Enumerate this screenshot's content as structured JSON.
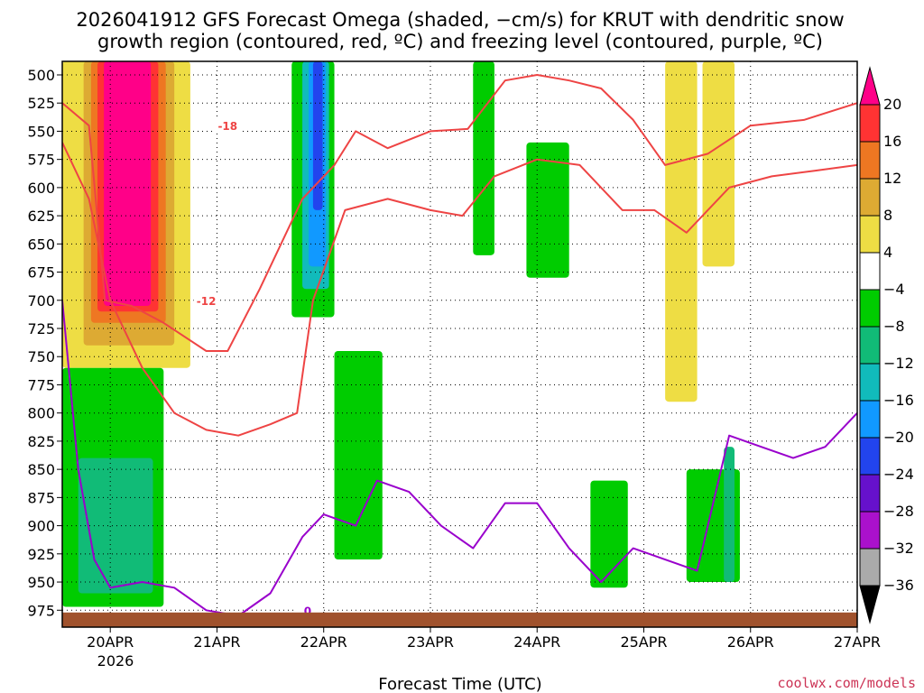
{
  "chart_data": {
    "type": "heatmap",
    "title_line1": "2026041912 GFS Forecast Omega (shaded, −cm/s) for KRUT with dendritic snow",
    "title_line2": "growth region (contoured, red, ºC) and freezing level (contoured, purple, ºC)",
    "xlabel": "Forecast Time (UTC)",
    "credit": "coolwx.com/models",
    "x_ticks": [
      "20APR",
      "21APR",
      "22APR",
      "23APR",
      "24APR",
      "25APR",
      "26APR",
      "27APR"
    ],
    "x_sub_label": "2026",
    "y_ticks": [
      "500",
      "525",
      "550",
      "575",
      "600",
      "625",
      "650",
      "675",
      "700",
      "725",
      "750",
      "775",
      "800",
      "825",
      "850",
      "875",
      "900",
      "925",
      "950",
      "975"
    ],
    "xlim": [
      -0.45,
      7.0
    ],
    "ylim": [
      488,
      990
    ],
    "colorbar": {
      "levels": [
        "20",
        "16",
        "12",
        "8",
        "4",
        "−4",
        "−8",
        "−12",
        "−16",
        "−20",
        "−24",
        "−28",
        "−32",
        "−36"
      ],
      "colors": [
        "#ff0088",
        "#ff3333",
        "#ee7722",
        "#ddaa33",
        "#eedd44",
        "#ffffff",
        "#00cc00",
        "#11bb77",
        "#11bbbb",
        "#1199ff",
        "#2244ee",
        "#6611cc",
        "#aa11cc",
        "#aaaaaa",
        "#000000"
      ]
    },
    "omega_regions": [
      {
        "color": "#eedd44",
        "x0": -0.45,
        "x1": 0.75,
        "p0": 488,
        "p1": 760
      },
      {
        "color": "#ddaa33",
        "x0": -0.25,
        "x1": 0.6,
        "p0": 488,
        "p1": 740
      },
      {
        "color": "#ee7722",
        "x0": -0.18,
        "x1": 0.52,
        "p0": 488,
        "p1": 720
      },
      {
        "color": "#ff3333",
        "x0": -0.12,
        "x1": 0.45,
        "p0": 488,
        "p1": 710
      },
      {
        "color": "#ff0088",
        "x0": -0.06,
        "x1": 0.38,
        "p0": 488,
        "p1": 705
      },
      {
        "color": "#00cc00",
        "x0": -0.45,
        "x1": 0.5,
        "p0": 760,
        "p1": 972
      },
      {
        "color": "#11bb77",
        "x0": -0.3,
        "x1": 0.4,
        "p0": 840,
        "p1": 960
      },
      {
        "color": "#00cc00",
        "x0": 1.7,
        "x1": 2.1,
        "p0": 488,
        "p1": 715
      },
      {
        "color": "#11bbbb",
        "x0": 1.8,
        "x1": 2.05,
        "p0": 488,
        "p1": 690
      },
      {
        "color": "#1199ff",
        "x0": 1.86,
        "x1": 2.02,
        "p0": 488,
        "p1": 670
      },
      {
        "color": "#2244ee",
        "x0": 1.9,
        "x1": 1.99,
        "p0": 488,
        "p1": 620
      },
      {
        "color": "#00cc00",
        "x0": 2.1,
        "x1": 2.55,
        "p0": 745,
        "p1": 930
      },
      {
        "color": "#00cc00",
        "x0": 3.4,
        "x1": 3.6,
        "p0": 488,
        "p1": 660
      },
      {
        "color": "#00cc00",
        "x0": 3.9,
        "x1": 4.3,
        "p0": 560,
        "p1": 680
      },
      {
        "color": "#eedd44",
        "x0": 5.2,
        "x1": 5.5,
        "p0": 488,
        "p1": 790
      },
      {
        "color": "#eedd44",
        "x0": 5.55,
        "x1": 5.85,
        "p0": 488,
        "p1": 670
      },
      {
        "color": "#00cc00",
        "x0": 5.4,
        "x1": 5.9,
        "p0": 850,
        "p1": 950
      },
      {
        "color": "#11bb77",
        "x0": 5.75,
        "x1": 5.85,
        "p0": 830,
        "p1": 950
      },
      {
        "color": "#00cc00",
        "x0": 4.5,
        "x1": 4.85,
        "p0": 860,
        "p1": 955
      }
    ],
    "series": [
      {
        "name": "-18",
        "color": "#ee4444",
        "label_at": 1,
        "label_x": 1.1,
        "x": [
          -0.45,
          -0.2,
          -0.05,
          0.2,
          0.5,
          0.9,
          1.1,
          1.4,
          1.8,
          2.1,
          2.3,
          2.6,
          3.0,
          3.35,
          3.7,
          4.0,
          4.3,
          4.6,
          4.9,
          5.2,
          5.6,
          6.0,
          6.5,
          7.0
        ],
        "y": [
          525,
          545,
          700,
          705,
          720,
          745,
          745,
          690,
          610,
          580,
          550,
          565,
          550,
          548,
          505,
          500,
          505,
          512,
          540,
          580,
          570,
          545,
          540,
          525
        ]
      },
      {
        "name": "-12",
        "color": "#ee4444",
        "label_at": 2,
        "label_x": 0.9,
        "x": [
          -0.45,
          -0.2,
          0.0,
          0.3,
          0.6,
          0.9,
          1.2,
          1.5,
          1.75,
          1.9,
          2.2,
          2.6,
          3.0,
          3.3,
          3.6,
          4.0,
          4.4,
          4.8,
          5.1,
          5.4,
          5.8,
          6.2,
          6.6,
          7.0
        ],
        "y": [
          560,
          610,
          700,
          760,
          800,
          815,
          820,
          810,
          800,
          700,
          620,
          610,
          620,
          625,
          590,
          575,
          580,
          620,
          620,
          640,
          600,
          590,
          585,
          580
        ]
      },
      {
        "name": "0",
        "color": "#9900cc",
        "label_at": 6,
        "label_x": 1.85,
        "x": [
          -0.45,
          -0.3,
          -0.15,
          0.0,
          0.3,
          0.6,
          0.9,
          1.2,
          1.5,
          1.8,
          2.0,
          2.3,
          2.5,
          2.8,
          3.1,
          3.4,
          3.7,
          4.0,
          4.3,
          4.6,
          4.9,
          5.2,
          5.5,
          5.8,
          6.1,
          6.4,
          6.7,
          7.0
        ],
        "y": [
          700,
          850,
          930,
          955,
          950,
          955,
          975,
          980,
          960,
          910,
          890,
          900,
          860,
          870,
          900,
          920,
          880,
          880,
          920,
          950,
          920,
          930,
          940,
          820,
          830,
          840,
          830,
          800
        ]
      }
    ],
    "ground": {
      "color": "#a0522d",
      "p_top": 977
    }
  }
}
